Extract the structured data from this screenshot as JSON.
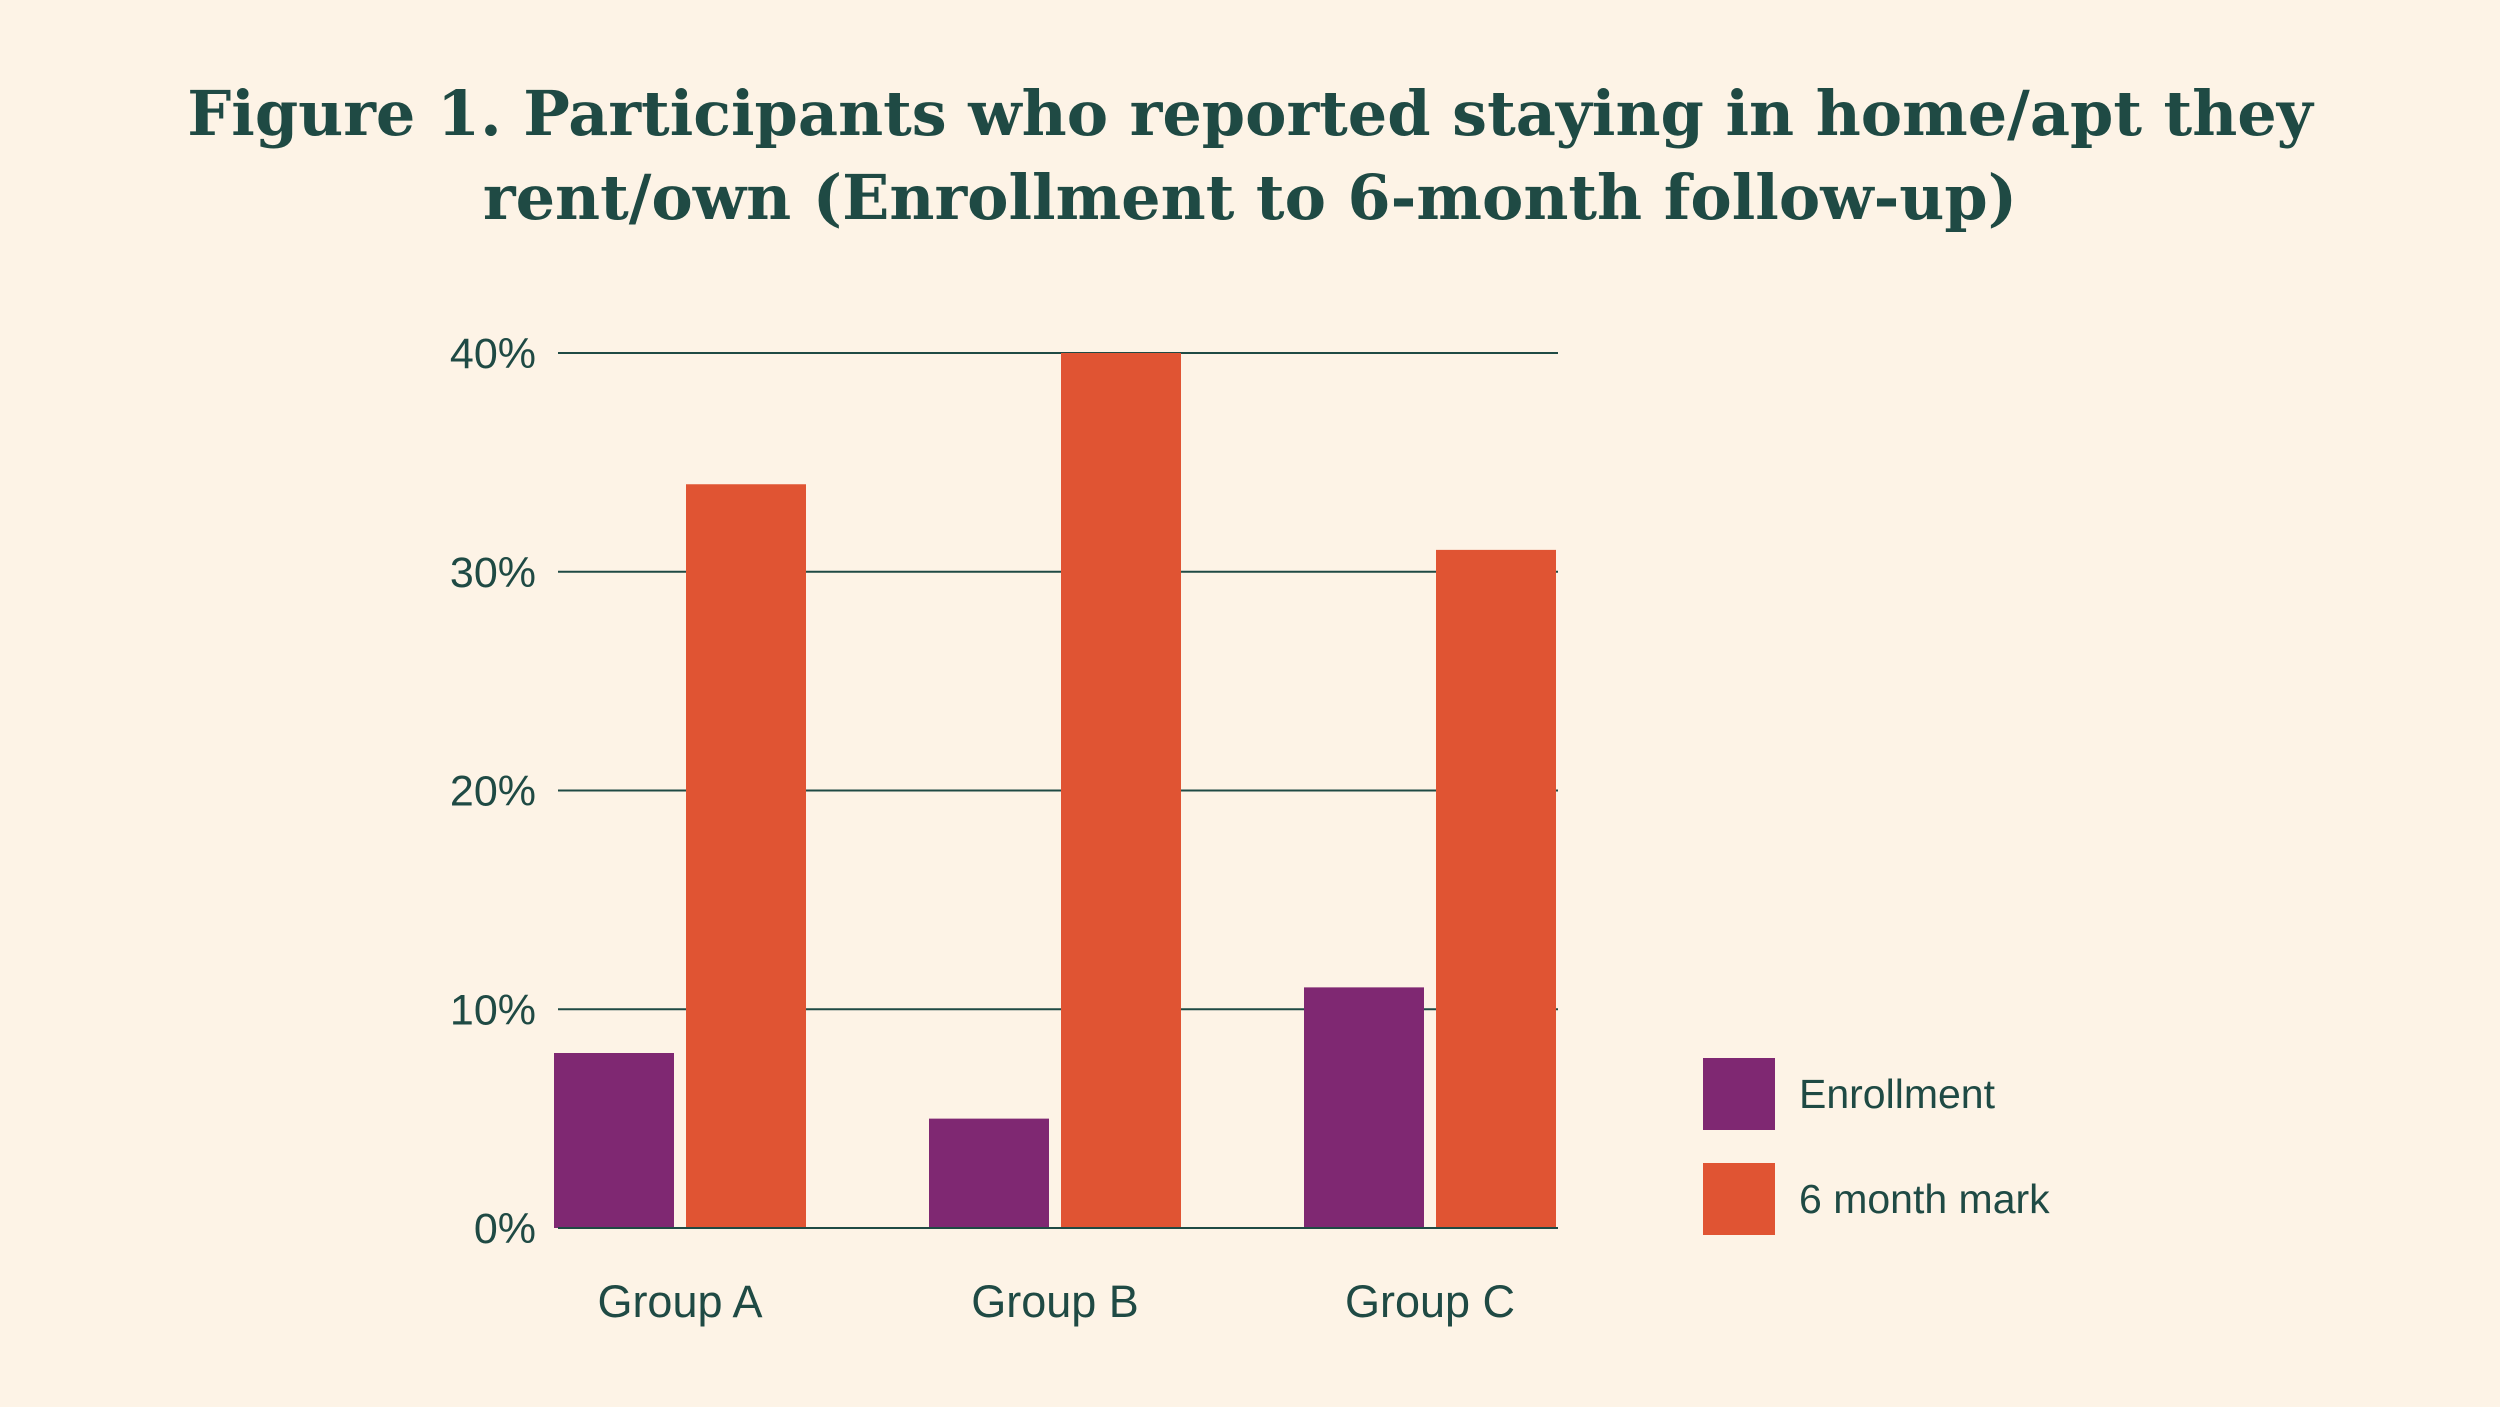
{
  "chart_data": {
    "type": "bar",
    "title_lines": [
      "Figure 1. Participants who reported staying in home/apt they",
      "rent/own (Enrollment to 6-month follow-up)"
    ],
    "categories": [
      "Group A",
      "Group B",
      "Group C"
    ],
    "series": [
      {
        "name": "Enrollment",
        "values": [
          8,
          5,
          11
        ],
        "color": "#7f2872"
      },
      {
        "name": "6 month mark",
        "values": [
          34,
          40,
          31
        ],
        "color": "#e05433"
      }
    ],
    "yticks": [
      {
        "value": 0,
        "label": "0%"
      },
      {
        "value": 10,
        "label": "10%"
      },
      {
        "value": 20,
        "label": "20%"
      },
      {
        "value": 30,
        "label": "30%"
      },
      {
        "value": 40,
        "label": "40%"
      }
    ],
    "ylim": [
      0,
      40
    ],
    "xlabel": "",
    "ylabel": "",
    "grid": true,
    "legend_position": "right",
    "colors": {
      "background": "#fdf3e6",
      "text": "#1f4a44",
      "gridline": "#1f4a44"
    }
  }
}
